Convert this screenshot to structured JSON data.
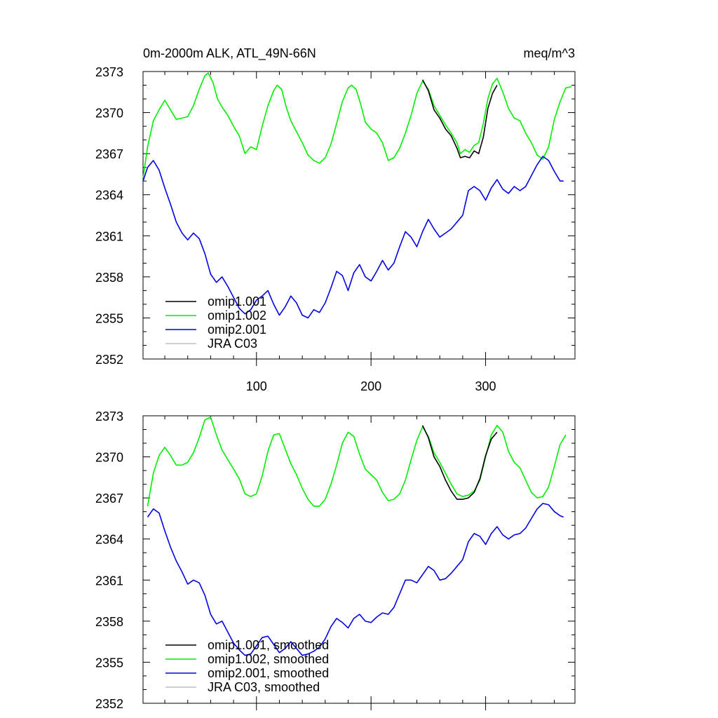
{
  "header": {
    "title": "0m-2000m ALK, ATL_49N-66N",
    "units": "meq/m^3"
  },
  "chart_data": [
    {
      "type": "line",
      "title": "0m-2000m ALK, ATL_49N-66N",
      "units": "meq/m^3",
      "xlim": [
        1,
        378
      ],
      "ylim": [
        2352,
        2373
      ],
      "x_ticks": [
        100,
        200,
        300
      ],
      "x_tick_labels": [
        "100",
        "200",
        "300"
      ],
      "y_ticks": [
        2352,
        2355,
        2358,
        2361,
        2364,
        2367,
        2370,
        2373
      ],
      "y_tick_labels": [
        "2352",
        "2355",
        "2358",
        "2361",
        "2364",
        "2367",
        "2370",
        "2373"
      ],
      "legend_position": "bottom-left",
      "series": [
        {
          "name": "omip1.001",
          "color": "#000000",
          "x": [
            245,
            250,
            255,
            260,
            265,
            270,
            275,
            278,
            282,
            286,
            290,
            294,
            298,
            302,
            306,
            310
          ],
          "y": [
            2372.4,
            2371.6,
            2370.2,
            2369.6,
            2368.8,
            2368.3,
            2367.4,
            2366.7,
            2366.8,
            2366.7,
            2367.2,
            2367.0,
            2368.2,
            2370.3,
            2371.4,
            2372.0
          ]
        },
        {
          "name": "omip1.002",
          "color": "#00ee00",
          "x": [
            1,
            5,
            10,
            15,
            20,
            25,
            30,
            35,
            40,
            45,
            50,
            55,
            58,
            62,
            66,
            70,
            75,
            80,
            85,
            90,
            95,
            100,
            105,
            110,
            115,
            118,
            122,
            126,
            130,
            135,
            140,
            145,
            150,
            155,
            160,
            165,
            170,
            175,
            180,
            183,
            187,
            191,
            195,
            200,
            205,
            210,
            215,
            220,
            225,
            230,
            235,
            240,
            245,
            250,
            255,
            260,
            265,
            270,
            275,
            278,
            282,
            286,
            290,
            294,
            298,
            302,
            306,
            310,
            315,
            320,
            325,
            330,
            335,
            340,
            345,
            350,
            355,
            360,
            365,
            370,
            375
          ],
          "y": [
            2365.2,
            2367.5,
            2369.4,
            2370.2,
            2370.9,
            2370.2,
            2369.5,
            2369.6,
            2369.7,
            2370.5,
            2371.7,
            2372.7,
            2372.9,
            2372.2,
            2371.0,
            2370.4,
            2369.8,
            2369.0,
            2368.3,
            2367.0,
            2367.5,
            2367.3,
            2369.0,
            2370.5,
            2371.6,
            2372.0,
            2371.7,
            2370.4,
            2369.4,
            2368.6,
            2367.8,
            2366.9,
            2366.5,
            2366.3,
            2366.7,
            2367.7,
            2369.2,
            2370.8,
            2371.8,
            2372.0,
            2371.7,
            2370.6,
            2369.3,
            2368.8,
            2368.5,
            2367.8,
            2366.5,
            2366.7,
            2367.4,
            2368.5,
            2369.8,
            2371.4,
            2372.3,
            2371.7,
            2370.5,
            2369.8,
            2369.1,
            2368.5,
            2367.8,
            2367.0,
            2367.3,
            2367.1,
            2367.6,
            2367.8,
            2369.2,
            2371.0,
            2372.1,
            2372.5,
            2371.5,
            2370.3,
            2369.6,
            2369.4,
            2368.5,
            2367.8,
            2366.9,
            2366.6,
            2367.5,
            2369.5,
            2370.8,
            2371.8,
            2371.9
          ]
        },
        {
          "name": "omip2.001",
          "color": "#0000e6",
          "x": [
            1,
            5,
            10,
            15,
            20,
            25,
            30,
            35,
            40,
            45,
            50,
            55,
            60,
            65,
            70,
            75,
            80,
            85,
            90,
            95,
            100,
            105,
            110,
            115,
            120,
            125,
            130,
            135,
            140,
            145,
            150,
            155,
            160,
            165,
            170,
            175,
            180,
            185,
            190,
            195,
            200,
            205,
            210,
            215,
            220,
            225,
            230,
            235,
            240,
            245,
            250,
            255,
            260,
            265,
            270,
            275,
            280,
            285,
            290,
            295,
            300,
            305,
            310,
            315,
            320,
            325,
            330,
            335,
            340,
            345,
            350,
            355,
            360,
            365,
            368
          ],
          "y": [
            2365.0,
            2366.0,
            2366.5,
            2365.8,
            2364.5,
            2363.3,
            2362.0,
            2361.2,
            2360.7,
            2361.2,
            2360.8,
            2359.7,
            2358.2,
            2357.6,
            2358.0,
            2357.3,
            2356.5,
            2355.7,
            2355.3,
            2355.6,
            2356.3,
            2356.6,
            2357.0,
            2356.0,
            2355.2,
            2355.8,
            2356.6,
            2356.1,
            2355.2,
            2355.0,
            2355.6,
            2355.4,
            2356.1,
            2357.2,
            2358.4,
            2358.1,
            2357.0,
            2358.3,
            2358.9,
            2358.0,
            2357.7,
            2358.4,
            2359.2,
            2358.5,
            2359.0,
            2360.2,
            2361.3,
            2360.9,
            2360.2,
            2361.3,
            2362.2,
            2361.5,
            2360.9,
            2361.2,
            2361.5,
            2362.0,
            2362.5,
            2364.3,
            2364.6,
            2364.3,
            2363.6,
            2364.5,
            2365.1,
            2364.4,
            2364.1,
            2364.6,
            2364.3,
            2364.6,
            2365.4,
            2366.2,
            2366.8,
            2366.5,
            2365.7,
            2365.0,
            2365.0
          ]
        },
        {
          "name": "JRA C03",
          "color": "#c0c0c0",
          "x": [],
          "y": []
        }
      ]
    },
    {
      "type": "line",
      "xlim": [
        1,
        378
      ],
      "ylim": [
        2352,
        2373
      ],
      "x_ticks": [
        100,
        200,
        300
      ],
      "x_tick_labels": [],
      "y_ticks": [
        2352,
        2355,
        2358,
        2361,
        2364,
        2367,
        2370,
        2373
      ],
      "y_tick_labels": [
        "2352",
        "2355",
        "2358",
        "2361",
        "2364",
        "2367",
        "2370",
        "2373"
      ],
      "legend_position": "bottom-left",
      "series": [
        {
          "name": "omip1.001, smoothed",
          "color": "#000000",
          "x": [
            245,
            250,
            255,
            260,
            265,
            270,
            275,
            280,
            285,
            290,
            295,
            300,
            305,
            310
          ],
          "y": [
            2372.3,
            2371.4,
            2370.0,
            2369.3,
            2368.3,
            2367.5,
            2366.9,
            2366.9,
            2367.0,
            2367.4,
            2368.4,
            2370.1,
            2371.3,
            2371.8
          ]
        },
        {
          "name": "omip1.002, smoothed",
          "color": "#00ee00",
          "x": [
            5,
            10,
            15,
            20,
            25,
            30,
            35,
            40,
            45,
            50,
            55,
            60,
            65,
            70,
            75,
            80,
            85,
            90,
            95,
            100,
            105,
            110,
            115,
            120,
            125,
            130,
            135,
            140,
            145,
            150,
            155,
            160,
            165,
            170,
            175,
            180,
            185,
            190,
            195,
            200,
            205,
            210,
            215,
            220,
            225,
            230,
            235,
            240,
            245,
            250,
            255,
            260,
            265,
            270,
            275,
            280,
            285,
            290,
            295,
            300,
            305,
            310,
            315,
            320,
            325,
            330,
            335,
            340,
            345,
            350,
            355,
            360,
            365,
            370
          ],
          "y": [
            2366.4,
            2368.8,
            2370.1,
            2370.7,
            2370.1,
            2369.4,
            2369.4,
            2369.6,
            2370.3,
            2371.4,
            2372.7,
            2372.9,
            2371.6,
            2370.5,
            2369.8,
            2369.1,
            2368.4,
            2367.3,
            2367.1,
            2367.3,
            2368.6,
            2370.4,
            2371.6,
            2371.7,
            2370.6,
            2369.5,
            2368.7,
            2367.7,
            2366.9,
            2366.4,
            2366.4,
            2366.9,
            2368.0,
            2369.4,
            2371.0,
            2371.8,
            2371.5,
            2370.2,
            2369.1,
            2368.7,
            2368.3,
            2367.4,
            2366.8,
            2366.9,
            2367.3,
            2368.3,
            2369.8,
            2371.2,
            2372.2,
            2371.5,
            2370.3,
            2369.6,
            2368.8,
            2368.0,
            2367.3,
            2367.1,
            2367.2,
            2367.5,
            2368.3,
            2370.0,
            2371.6,
            2372.3,
            2371.8,
            2370.4,
            2369.6,
            2369.2,
            2368.3,
            2367.4,
            2367.0,
            2367.1,
            2367.8,
            2369.3,
            2370.9,
            2371.6
          ]
        },
        {
          "name": "omip2.001, smoothed",
          "color": "#0000e6",
          "x": [
            5,
            10,
            15,
            20,
            25,
            30,
            35,
            40,
            45,
            50,
            55,
            60,
            65,
            70,
            75,
            80,
            85,
            90,
            95,
            100,
            105,
            110,
            115,
            120,
            125,
            130,
            135,
            140,
            145,
            150,
            155,
            160,
            165,
            170,
            175,
            180,
            185,
            190,
            195,
            200,
            205,
            210,
            215,
            220,
            225,
            230,
            235,
            240,
            245,
            250,
            255,
            260,
            265,
            270,
            275,
            280,
            285,
            290,
            295,
            300,
            305,
            310,
            315,
            320,
            325,
            330,
            335,
            340,
            345,
            350,
            355,
            360,
            365,
            368
          ],
          "y": [
            2365.6,
            2366.2,
            2365.9,
            2364.6,
            2363.4,
            2362.4,
            2361.6,
            2360.7,
            2361.0,
            2360.8,
            2359.9,
            2358.5,
            2357.8,
            2358.0,
            2357.2,
            2356.4,
            2355.9,
            2355.5,
            2355.6,
            2356.2,
            2356.8,
            2356.9,
            2356.3,
            2355.7,
            2356.0,
            2356.5,
            2356.0,
            2355.5,
            2355.6,
            2355.8,
            2356.1,
            2356.7,
            2357.6,
            2358.2,
            2357.9,
            2357.5,
            2358.2,
            2358.5,
            2358.0,
            2357.9,
            2358.3,
            2358.6,
            2358.5,
            2359.0,
            2360.0,
            2361.0,
            2361.0,
            2360.8,
            2361.4,
            2362.0,
            2361.7,
            2361.0,
            2361.1,
            2361.5,
            2362.0,
            2362.5,
            2363.8,
            2364.4,
            2364.2,
            2363.6,
            2364.4,
            2364.9,
            2364.3,
            2364.0,
            2364.3,
            2364.4,
            2364.8,
            2365.5,
            2366.2,
            2366.6,
            2366.5,
            2366.0,
            2365.7,
            2365.6
          ]
        },
        {
          "name": "JRA C03, smoothed",
          "color": "#c0c0c0",
          "x": [],
          "y": []
        }
      ]
    }
  ]
}
